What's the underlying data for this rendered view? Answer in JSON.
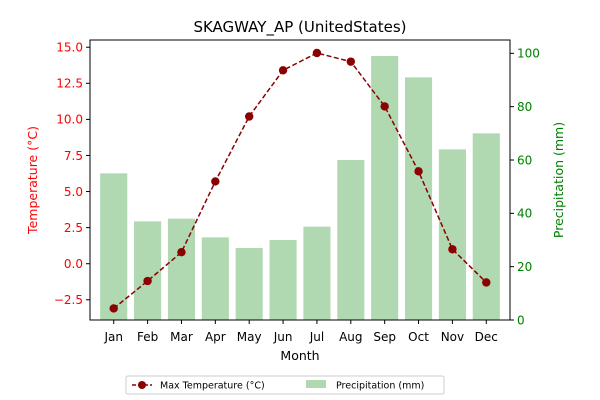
{
  "chart_data": {
    "type": "bar+line",
    "title": "SKAGWAY_AP (UnitedStates)",
    "xlabel": "Month",
    "categories": [
      "Jan",
      "Feb",
      "Mar",
      "Apr",
      "May",
      "Jun",
      "Jul",
      "Aug",
      "Sep",
      "Oct",
      "Nov",
      "Dec"
    ],
    "series": [
      {
        "name": "Max Temperature (°C)",
        "type": "line",
        "axis": "left",
        "values": [
          -3.1,
          -1.2,
          0.8,
          5.7,
          10.2,
          13.4,
          14.6,
          14.0,
          10.9,
          6.4,
          1.0,
          -1.3
        ]
      },
      {
        "name": "Precipitation (mm)",
        "type": "bar",
        "axis": "right",
        "values": [
          55,
          37,
          38,
          31,
          27,
          30,
          35,
          60,
          99,
          91,
          64,
          70
        ]
      }
    ],
    "y_left": {
      "label": "Temperature (°C)",
      "range": [
        -3.9,
        15.5
      ],
      "ticks": [
        -2.5,
        0.0,
        2.5,
        5.0,
        7.5,
        10.0,
        12.5,
        15.0
      ],
      "tick_labels": [
        "−2.5",
        "0.0",
        "2.5",
        "5.0",
        "7.5",
        "10.0",
        "12.5",
        "15.0"
      ],
      "color": "#ff0000"
    },
    "y_right": {
      "label": "Precipitation (mm)",
      "range": [
        0,
        105
      ],
      "ticks": [
        0,
        20,
        40,
        60,
        80,
        100
      ],
      "tick_labels": [
        "0",
        "20",
        "40",
        "60",
        "80",
        "100"
      ],
      "color": "#008000"
    },
    "colors": {
      "line": "#8b0000",
      "bar": "#b0d9b1"
    },
    "grid": false,
    "legend_position": "bottom-center"
  }
}
